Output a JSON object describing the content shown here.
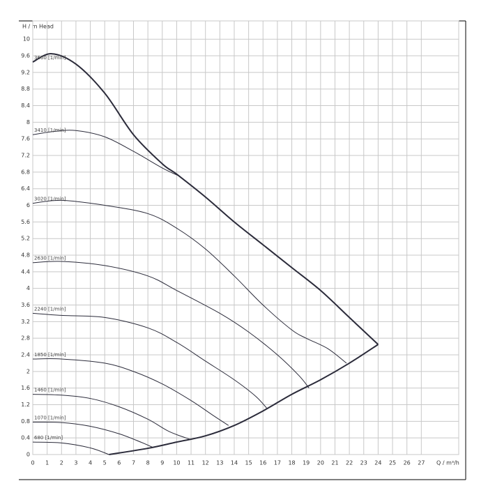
{
  "chart_data": {
    "type": "line",
    "y_label": "H / m",
    "annotation": "Head",
    "x_label": "Q / m³/h",
    "xlim": [
      0,
      29.6
    ],
    "ylim": [
      0,
      10.44
    ],
    "xticks": [
      0,
      1,
      2,
      3,
      4,
      5,
      6,
      7,
      8,
      9,
      10,
      11,
      12,
      13,
      14,
      15,
      16,
      17,
      18,
      19,
      20,
      21,
      22,
      23,
      24,
      25,
      26,
      27
    ],
    "yticks": [
      0,
      0.4,
      0.8,
      1.2,
      1.6,
      2,
      2.4,
      2.8,
      3.2,
      3.6,
      4,
      4.4,
      4.8,
      5.2,
      5.6,
      6,
      6.4,
      6.8,
      7.2,
      7.6,
      8,
      8.4,
      8.8,
      9.2,
      9.6,
      10
    ],
    "grid": true,
    "series": [
      {
        "name": "3660 [1/min]",
        "color": "#2b2b3a",
        "x": [
          0,
          1.3,
          3,
          5,
          7,
          9,
          10,
          12,
          14,
          16,
          18,
          20,
          22,
          24
        ],
        "values": [
          9.45,
          9.65,
          9.4,
          8.7,
          7.7,
          7.0,
          6.75,
          6.2,
          5.6,
          5.05,
          4.5,
          3.95,
          3.3,
          2.65
        ]
      },
      {
        "name": "3410 [1/min]",
        "color": "#2b2b3a",
        "x": [
          0,
          1.5,
          3,
          5,
          7,
          9,
          10.2
        ],
        "values": [
          7.7,
          7.78,
          7.8,
          7.65,
          7.3,
          6.9,
          6.7
        ]
      },
      {
        "name": "3020 [1/min]",
        "color": "#2b2b3a",
        "x": [
          0,
          2,
          5,
          8,
          10,
          12,
          14,
          16,
          18,
          19,
          20.5,
          21.8
        ],
        "values": [
          6.05,
          6.12,
          6.0,
          5.8,
          5.45,
          4.95,
          4.3,
          3.6,
          3.0,
          2.8,
          2.55,
          2.2
        ]
      },
      {
        "name": "2630 [1/min]",
        "color": "#2b2b3a",
        "x": [
          0,
          2,
          5,
          8,
          10,
          13,
          15,
          17,
          18.5,
          19.2
        ],
        "values": [
          4.62,
          4.65,
          4.55,
          4.3,
          3.95,
          3.4,
          2.95,
          2.4,
          1.9,
          1.6
        ]
      },
      {
        "name": "2240 [1/min]",
        "color": "#2b2b3a",
        "x": [
          0,
          2,
          5,
          8,
          10,
          12,
          14,
          15.5,
          16.3
        ],
        "values": [
          3.4,
          3.35,
          3.3,
          3.05,
          2.7,
          2.25,
          1.8,
          1.4,
          1.1
        ]
      },
      {
        "name": "1850 [1/min]",
        "color": "#2b2b3a",
        "x": [
          0,
          2,
          5,
          7,
          9,
          11,
          12.5,
          13.6
        ],
        "values": [
          2.3,
          2.3,
          2.2,
          2.0,
          1.7,
          1.3,
          0.95,
          0.7
        ]
      },
      {
        "name": "1460 [1/min]",
        "color": "#2b2b3a",
        "x": [
          0,
          2,
          4,
          6,
          8,
          9.5,
          11
        ],
        "values": [
          1.45,
          1.43,
          1.35,
          1.15,
          0.85,
          0.55,
          0.36
        ]
      },
      {
        "name": "1070 [1/min]",
        "color": "#2b2b3a",
        "x": [
          0,
          2,
          4,
          6,
          7.5,
          8.3
        ],
        "values": [
          0.78,
          0.77,
          0.68,
          0.5,
          0.3,
          0.18
        ]
      },
      {
        "name": "680 [1/min]",
        "color": "#2b2b3a",
        "x": [
          0,
          2,
          4,
          5.3
        ],
        "values": [
          0.3,
          0.28,
          0.16,
          0
        ]
      }
    ],
    "limit_curve": {
      "color": "#2b2b3a",
      "x": [
        5.3,
        8,
        10,
        12,
        14,
        16,
        18,
        20,
        22,
        24
      ],
      "values": [
        0,
        0.15,
        0.3,
        0.45,
        0.7,
        1.05,
        1.45,
        1.8,
        2.2,
        2.65
      ]
    }
  }
}
